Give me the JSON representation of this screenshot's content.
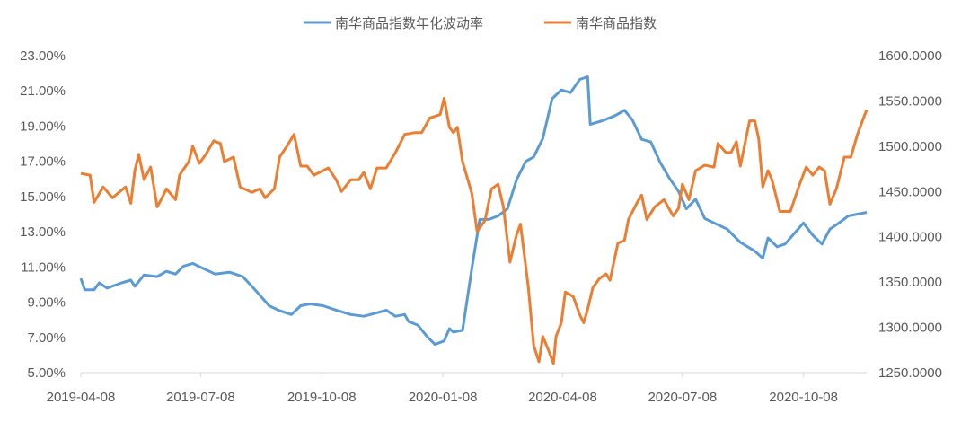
{
  "chart_data": {
    "type": "line",
    "title": "",
    "x_unit": "days since 2019-04-08",
    "x_ticks": [
      {
        "day": 0,
        "label": "2019-04-08"
      },
      {
        "day": 91,
        "label": "2019-07-08"
      },
      {
        "day": 183,
        "label": "2019-10-08"
      },
      {
        "day": 275,
        "label": "2020-01-08"
      },
      {
        "day": 366,
        "label": "2020-04-08"
      },
      {
        "day": 457,
        "label": "2020-07-08"
      },
      {
        "day": 549,
        "label": "2020-10-08"
      }
    ],
    "xlim": [
      0,
      597
    ],
    "left_axis": {
      "ylim": [
        5,
        23
      ],
      "ticks": [
        "5.00%",
        "7.00%",
        "9.00%",
        "11.00%",
        "13.00%",
        "15.00%",
        "17.00%",
        "19.00%",
        "21.00%",
        "23.00%"
      ],
      "tick_values": [
        5,
        7,
        9,
        11,
        13,
        15,
        17,
        19,
        21,
        23
      ]
    },
    "right_axis": {
      "ylim": [
        1250,
        1600
      ],
      "ticks": [
        "1250.0000",
        "1300.0000",
        "1350.0000",
        "1400.0000",
        "1450.0000",
        "1500.0000",
        "1550.0000",
        "1600.0000"
      ],
      "tick_values": [
        1250,
        1300,
        1350,
        1400,
        1450,
        1500,
        1550,
        1600
      ]
    },
    "legend_position": "top-center",
    "series": [
      {
        "name": "南华商品指数年化波动率",
        "axis": "left",
        "color": "#5B9BD5",
        "x": [
          0,
          3,
          10,
          14,
          20,
          31,
          38,
          41,
          48,
          58,
          65,
          72,
          78,
          85,
          92,
          102,
          113,
          123,
          130,
          136,
          143,
          150,
          160,
          167,
          174,
          184,
          194,
          205,
          215,
          225,
          232,
          239,
          246,
          249,
          256,
          263,
          269,
          276,
          280,
          283,
          290,
          297,
          303,
          310,
          317,
          324,
          331,
          338,
          344,
          351,
          358,
          365,
          372,
          379,
          385,
          387,
          396,
          406,
          413,
          419,
          426,
          433,
          440,
          447,
          454,
          460,
          467,
          474,
          481,
          491,
          501,
          512,
          518,
          522,
          529,
          535,
          549,
          556,
          563,
          569,
          576,
          583,
          597
        ],
        "y": [
          10.35,
          9.7,
          9.7,
          10.1,
          9.8,
          10.1,
          10.25,
          9.9,
          10.55,
          10.45,
          10.75,
          10.6,
          11.05,
          11.2,
          10.95,
          10.6,
          10.7,
          10.45,
          9.9,
          9.4,
          8.8,
          8.55,
          8.3,
          8.8,
          8.9,
          8.8,
          8.55,
          8.3,
          8.2,
          8.4,
          8.55,
          8.2,
          8.3,
          7.9,
          7.7,
          7.05,
          6.6,
          6.8,
          7.5,
          7.3,
          7.4,
          10.9,
          13.7,
          13.7,
          13.9,
          14.3,
          15.95,
          17.0,
          17.25,
          18.3,
          20.55,
          21.05,
          20.9,
          21.65,
          21.8,
          19.1,
          19.3,
          19.6,
          19.9,
          19.35,
          18.25,
          18.1,
          16.95,
          16.05,
          15.3,
          14.3,
          14.85,
          13.75,
          13.5,
          13.15,
          12.4,
          11.9,
          11.5,
          12.65,
          12.15,
          12.3,
          13.5,
          12.8,
          12.3,
          13.15,
          13.5,
          13.9,
          14.1
        ]
      },
      {
        "name": "南华商品指数",
        "axis": "right",
        "color": "#ED7D31",
        "x": [
          0,
          7,
          10,
          17,
          24,
          34,
          38,
          41,
          44,
          48,
          53,
          58,
          61,
          65,
          72,
          75,
          82,
          85,
          90,
          95,
          101,
          106,
          109,
          116,
          121,
          130,
          136,
          140,
          147,
          151,
          157,
          162,
          167,
          172,
          177,
          184,
          188,
          194,
          198,
          205,
          211,
          215,
          220,
          225,
          232,
          239,
          246,
          254,
          259,
          265,
          269,
          273,
          276,
          280,
          283,
          286,
          290,
          297,
          301,
          307,
          312,
          317,
          321,
          326,
          331,
          334,
          340,
          344,
          348,
          351,
          356,
          359,
          361,
          365,
          368,
          374,
          379,
          382,
          385,
          389,
          394,
          399,
          402,
          408,
          413,
          416,
          423,
          426,
          430,
          436,
          443,
          450,
          454,
          457,
          462,
          467,
          474,
          481,
          484,
          490,
          494,
          498,
          501,
          508,
          512,
          515,
          518,
          522,
          525,
          531,
          539,
          546,
          551,
          556,
          561,
          565,
          569,
          574,
          580,
          585,
          590,
          595,
          597
        ],
        "y": [
          1470,
          1468,
          1438,
          1455,
          1443,
          1455,
          1437,
          1473,
          1491,
          1463,
          1477,
          1433,
          1441,
          1453,
          1441,
          1468,
          1483,
          1500,
          1481,
          1491,
          1506,
          1503,
          1483,
          1488,
          1455,
          1449,
          1453,
          1443,
          1453,
          1488,
          1501,
          1513,
          1478,
          1478,
          1468,
          1473,
          1476,
          1463,
          1450,
          1463,
          1463,
          1471,
          1453,
          1476,
          1476,
          1493,
          1513,
          1515,
          1515,
          1531,
          1533,
          1535,
          1553,
          1521,
          1515,
          1521,
          1483,
          1448,
          1406,
          1418,
          1453,
          1458,
          1433,
          1372,
          1402,
          1414,
          1344,
          1280,
          1262,
          1290,
          1272,
          1260,
          1290,
          1305,
          1339,
          1334,
          1314,
          1305,
          1320,
          1344,
          1354,
          1359,
          1352,
          1393,
          1396,
          1419,
          1439,
          1446,
          1419,
          1433,
          1441,
          1423,
          1431,
          1458,
          1441,
          1473,
          1479,
          1477,
          1503,
          1493,
          1493,
          1505,
          1478,
          1528,
          1528,
          1508,
          1455,
          1473,
          1463,
          1428,
          1428,
          1458,
          1477,
          1468,
          1477,
          1473,
          1436,
          1453,
          1488,
          1488,
          1513,
          1533,
          1540
        ]
      }
    ]
  }
}
